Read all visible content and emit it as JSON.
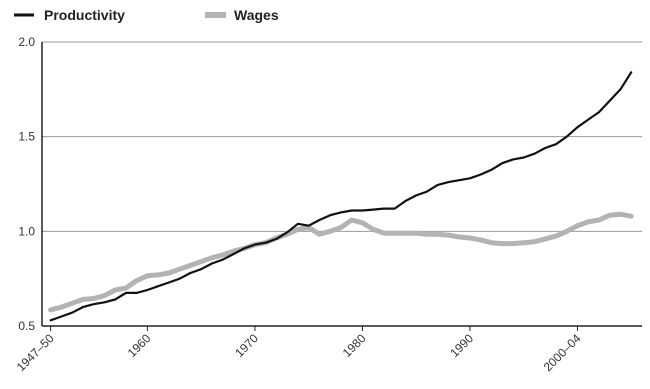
{
  "chart_data": {
    "type": "line",
    "title": "",
    "xlabel": "",
    "ylabel": "",
    "x": [
      1951,
      1952,
      1953,
      1954,
      1955,
      1956,
      1957,
      1958,
      1959,
      1960,
      1961,
      1962,
      1963,
      1964,
      1965,
      1966,
      1967,
      1968,
      1969,
      1970,
      1971,
      1972,
      1973,
      1974,
      1975,
      1976,
      1977,
      1978,
      1979,
      1980,
      1981,
      1982,
      1983,
      1984,
      1985,
      1986,
      1987,
      1988,
      1989,
      1990,
      1991,
      1992,
      1993,
      1994,
      1995,
      1996,
      1997,
      1998,
      1999,
      2000,
      2001,
      2002,
      2003,
      2004,
      2005
    ],
    "series": [
      {
        "name": "Productivity",
        "color": "#111111",
        "values": [
          0.53,
          0.55,
          0.57,
          0.6,
          0.615,
          0.625,
          0.64,
          0.675,
          0.675,
          0.69,
          0.71,
          0.73,
          0.75,
          0.78,
          0.8,
          0.83,
          0.85,
          0.88,
          0.91,
          0.93,
          0.94,
          0.96,
          0.995,
          1.04,
          1.03,
          1.06,
          1.085,
          1.1,
          1.11,
          1.11,
          1.115,
          1.12,
          1.12,
          1.16,
          1.19,
          1.21,
          1.245,
          1.26,
          1.27,
          1.28,
          1.3,
          1.325,
          1.36,
          1.38,
          1.39,
          1.41,
          1.44,
          1.46,
          1.5,
          1.55,
          1.59,
          1.63,
          1.69,
          1.75,
          1.84
        ]
      },
      {
        "name": "Wages",
        "color": "#b3b3b3",
        "values": [
          0.585,
          0.6,
          0.62,
          0.64,
          0.645,
          0.66,
          0.69,
          0.7,
          0.74,
          0.765,
          0.77,
          0.78,
          0.8,
          0.82,
          0.84,
          0.86,
          0.875,
          0.895,
          0.91,
          0.93,
          0.94,
          0.965,
          0.985,
          1.01,
          1.02,
          0.985,
          1.0,
          1.02,
          1.06,
          1.045,
          1.01,
          0.99,
          0.99,
          0.99,
          0.99,
          0.985,
          0.985,
          0.98,
          0.97,
          0.965,
          0.955,
          0.94,
          0.935,
          0.935,
          0.94,
          0.945,
          0.96,
          0.975,
          1.0,
          1.03,
          1.05,
          1.06,
          1.085,
          1.09,
          1.08
        ]
      }
    ],
    "xlim": [
      1950.2,
      2006
    ],
    "ylim": [
      0.5,
      2.0
    ],
    "xticks": [
      {
        "label": "1947–50",
        "x": 1951
      },
      {
        "label": "1960",
        "x": 1960
      },
      {
        "label": "1970",
        "x": 1970
      },
      {
        "label": "1980",
        "x": 1980
      },
      {
        "label": "1990",
        "x": 1990
      },
      {
        "label": "2000–04",
        "x": 2000
      }
    ],
    "yticks": [
      {
        "label": "0.5",
        "value": 0.5
      },
      {
        "label": "1.0",
        "value": 1.0
      },
      {
        "label": "1.5",
        "value": 1.5
      },
      {
        "label": "2.0",
        "value": 2.0
      }
    ],
    "grid": "horizontal",
    "legend_position": "top-left"
  }
}
